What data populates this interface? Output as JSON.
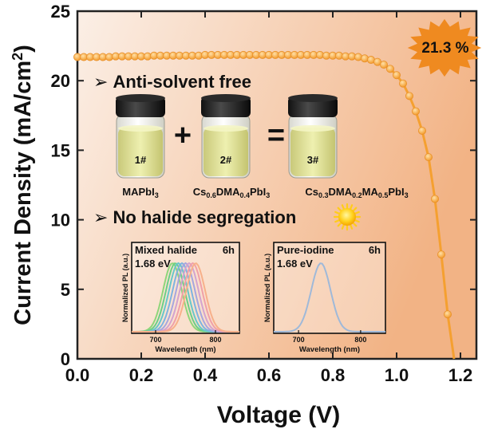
{
  "chart_data": {
    "type": "line",
    "title": "",
    "xlabel": "Voltage (V)",
    "ylabel_main": "Current Density (mA/cm",
    "ylabel_sup": "2",
    "ylabel_close": ")",
    "xlim": [
      0.0,
      1.25
    ],
    "ylim": [
      0,
      25
    ],
    "xticks": [
      0.0,
      0.2,
      0.4,
      0.6,
      0.8,
      1.0,
      1.2
    ],
    "xtick_labels": [
      "0.0",
      "0.2",
      "0.4",
      "0.6",
      "0.8",
      "1.0",
      "1.2"
    ],
    "yticks": [
      0,
      5,
      10,
      15,
      20,
      25
    ],
    "ytick_labels": [
      "0",
      "5",
      "10",
      "15",
      "20",
      "25"
    ],
    "series": [
      {
        "name": "J-V",
        "x": [
          0.0,
          0.02,
          0.04,
          0.06,
          0.08,
          0.1,
          0.12,
          0.14,
          0.16,
          0.18,
          0.2,
          0.22,
          0.24,
          0.26,
          0.28,
          0.3,
          0.32,
          0.34,
          0.36,
          0.38,
          0.4,
          0.42,
          0.44,
          0.46,
          0.48,
          0.5,
          0.52,
          0.54,
          0.56,
          0.58,
          0.6,
          0.62,
          0.64,
          0.66,
          0.68,
          0.7,
          0.72,
          0.74,
          0.76,
          0.78,
          0.8,
          0.82,
          0.84,
          0.86,
          0.88,
          0.9,
          0.92,
          0.94,
          0.96,
          0.98,
          1.0,
          1.02,
          1.04,
          1.06,
          1.08,
          1.1,
          1.12,
          1.14,
          1.16,
          1.18
        ],
        "y": [
          21.7,
          21.7,
          21.7,
          21.7,
          21.7,
          21.7,
          21.75,
          21.75,
          21.75,
          21.75,
          21.75,
          21.75,
          21.8,
          21.8,
          21.8,
          21.8,
          21.8,
          21.8,
          21.8,
          21.8,
          21.85,
          21.85,
          21.85,
          21.85,
          21.85,
          21.85,
          21.85,
          21.85,
          21.85,
          21.85,
          21.85,
          21.85,
          21.85,
          21.85,
          21.85,
          21.85,
          21.85,
          21.85,
          21.85,
          21.8,
          21.8,
          21.8,
          21.75,
          21.75,
          21.7,
          21.6,
          21.5,
          21.35,
          21.15,
          20.85,
          20.4,
          19.8,
          18.9,
          17.8,
          16.4,
          14.5,
          11.5,
          7.5,
          3.2,
          0.0
        ]
      }
    ],
    "annotations": [
      {
        "text": "21.3 %",
        "position": "top-right"
      }
    ]
  },
  "badge": {
    "text": "21.3 %",
    "fill": "#ef8a20"
  },
  "colors": {
    "curve": "#f5a030",
    "marker": "#f4a33a",
    "bg_left": "#fbefe6",
    "bg_right": "#f2b385",
    "frame": "#222222"
  },
  "captions": {
    "anti_solvent": "Anti-solvent free",
    "no_halide": "No halide segregation",
    "bullet": "➢"
  },
  "vials": [
    {
      "label": "1#"
    },
    {
      "label": "2#"
    },
    {
      "label": "3#"
    }
  ],
  "operators": {
    "plus": "+",
    "equals": "="
  },
  "formulas": {
    "f1": {
      "a": "MAPbI",
      "b": "3"
    },
    "f2": {
      "a": "Cs",
      "b": "0.6",
      "c": "DMA",
      "d": "0.4",
      "e": "PbI",
      "f": "3"
    },
    "f3": {
      "a": "Cs",
      "b": "0.3",
      "c": "DMA",
      "d": "0.2",
      "e": "MA",
      "f": "0.5",
      "g": "PbI",
      "h": "3"
    }
  },
  "insets": [
    {
      "title": "Mixed halide",
      "time": "6h",
      "energy": "1.68 eV",
      "xlabel": "Wavelength (nm)",
      "ylabel": "Normalized PL (a.u.)",
      "xticks": [
        "700",
        "800"
      ],
      "peaks_nm": [
        728,
        733,
        738,
        744,
        750,
        756,
        762,
        767
      ],
      "peak_colors": [
        "#8fd57a",
        "#6ccf86",
        "#68c7c9",
        "#7fb3e0",
        "#a6a6de",
        "#d3a3cf",
        "#f0a0a8",
        "#f7b08a"
      ]
    },
    {
      "title": "Pure-iodine",
      "time": "6h",
      "energy": "1.68 eV",
      "xlabel": "Wavelength (nm)",
      "ylabel": "Normalized PL (a.u.)",
      "xticks": [
        "700",
        "800"
      ],
      "peaks_nm": [
        736
      ],
      "peak_colors": [
        "#9fb9d9"
      ]
    }
  ]
}
